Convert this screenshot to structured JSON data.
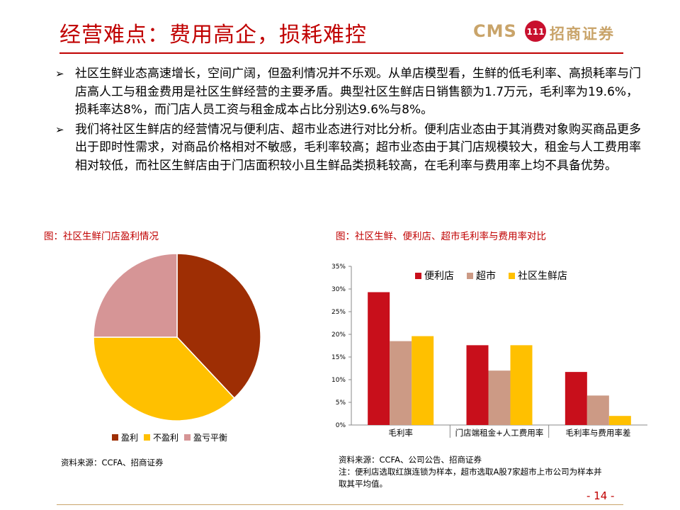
{
  "title": "经营难点：费用高企，损耗难控",
  "logo": {
    "cms": "CMS",
    "badge": "111",
    "cn": "招商证券"
  },
  "bullets": [
    {
      "marker": "➢",
      "text": "社区生鲜业态高速增长，空间广阔，但盈利情况并不乐观。从单店模型看，生鲜的低毛利率、高损耗率与门店高人工与租金费用是社区生鲜经营的主要矛盾。典型社区生鲜店日销售额为1.7万元，毛利率为19.6%，损耗率达8%，而门店人员工资与租金成本占比分别达9.6%与8%。"
    },
    {
      "marker": "➢",
      "text": "我们将社区生鲜店的经营情况与便利店、超市业态进行对比分析。便利店业态由于其消费对象购买商品更多出于即时性需求，对商品价格相对不敏感，毛利率较高；超市业态由于其门店规模较大，租金与人工费用率相对较低，而社区生鲜店由于门店面积较小且生鲜品类损耗较高，在毛利率与费用率上均不具备优势。"
    }
  ],
  "left_chart": {
    "caption": "图：社区生鲜门店盈利情况",
    "source": "资料来源：CCFA、招商证券"
  },
  "right_chart": {
    "caption": "图：社区生鲜、便利店、超市毛利率与费用率对比",
    "source_lines": [
      "资料来源：CCFA、公司公告、招商证券",
      "注：便利店选取红旗连锁为样本，超市选取A股7家超市上市公司为样本并",
      "取其平均值。"
    ]
  },
  "page_number": "- 14 -",
  "colors": {
    "title_red": "#c00000",
    "pie_profit": "#9e2e04",
    "pie_loss": "#ffc000",
    "pie_breakeven": "#d69596",
    "bar_convenience": "#c80f1b",
    "bar_supermarket": "#cc9a85",
    "bar_community": "#ffc000",
    "logo_gold": "#c9a46a"
  },
  "chart_data": [
    {
      "type": "pie",
      "labels": [
        "盈利",
        "不盈利",
        "盈亏平衡"
      ],
      "values": [
        38,
        37,
        25
      ],
      "legend_position": "bottom"
    },
    {
      "type": "bar",
      "categories": [
        "毛利率",
        "门店端租金+人工费用率",
        "毛利率与费用率差"
      ],
      "series": [
        {
          "name": "便利店",
          "values": [
            29.3,
            17.6,
            11.7
          ]
        },
        {
          "name": "超市",
          "values": [
            18.5,
            12.0,
            6.5
          ]
        },
        {
          "name": "社区生鲜店",
          "values": [
            19.6,
            17.6,
            2.0
          ]
        }
      ],
      "ylim": [
        0,
        35
      ],
      "yticks": [
        "0%",
        "5%",
        "10%",
        "15%",
        "20%",
        "25%",
        "30%",
        "35%"
      ],
      "grid": false,
      "legend_position": "top"
    }
  ]
}
